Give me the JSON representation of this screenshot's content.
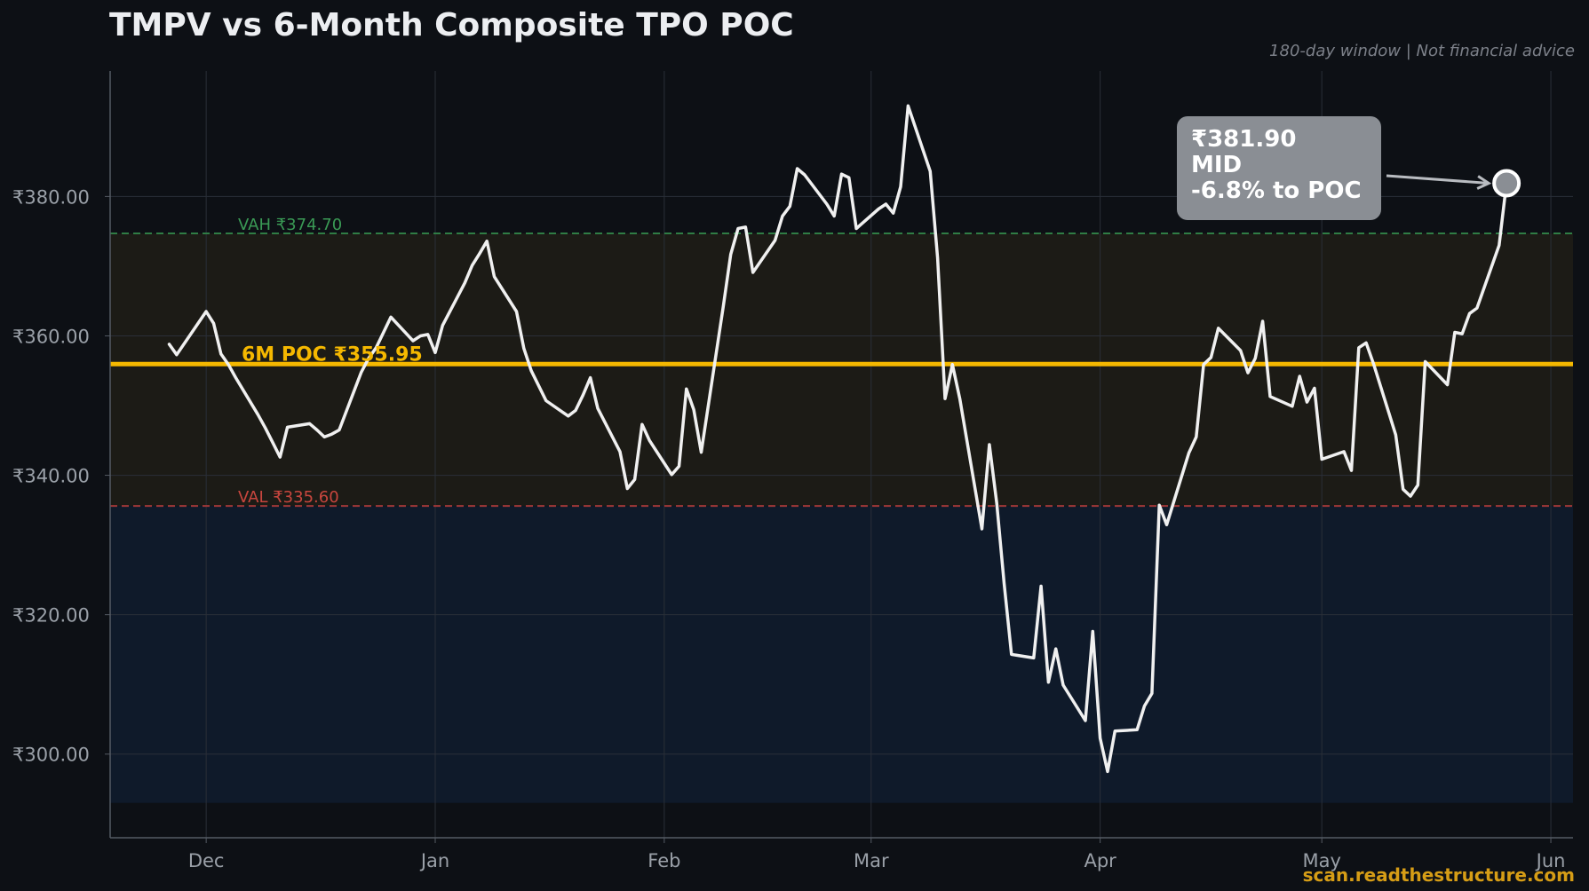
{
  "title": "TMPV vs 6-Month Composite TPO POC",
  "subtitle": "180-day window | Not financial advice",
  "watermark": "scan.readthestructure.com",
  "colors": {
    "background": "#0d1015",
    "price_line": "#f0f0f0",
    "poc": "#f5b800",
    "vah": "#2f7d45",
    "val": "#a13838",
    "value_area_fill": "#1c1b16",
    "below_val_fill": "#0f1a2a",
    "callout_bg": "#8a8e94"
  },
  "callout": {
    "price": "₹381.90",
    "zone": "MID",
    "distance": "-6.8% to POC"
  },
  "chart_data": {
    "type": "line",
    "title": "TMPV vs 6-Month Composite TPO POC",
    "x_ticks": [
      "Dec",
      "Jan",
      "Feb",
      "Mar",
      "Apr",
      "May",
      "Jun"
    ],
    "x_tick_dates": [
      "2025-12-01",
      "2026-01-01",
      "2026-02-01",
      "2026-03-01",
      "2026-04-01",
      "2026-05-01",
      "2026-06-01"
    ],
    "y_ticks": [
      "₹300.00",
      "₹320.00",
      "₹340.00",
      "₹360.00",
      "₹380.00"
    ],
    "y_tick_values": [
      300,
      320,
      340,
      360,
      380
    ],
    "ylim": [
      288,
      398
    ],
    "xlim": [
      "2025-11-18",
      "2026-06-04"
    ],
    "grid": true,
    "levels": [
      {
        "name": "POC",
        "label": "6M POC ₹355.95",
        "value": 355.95
      },
      {
        "name": "VAH",
        "label": "VAH ₹374.70",
        "value": 374.7
      },
      {
        "name": "VAL",
        "label": "VAL ₹335.60",
        "value": 335.6
      }
    ],
    "shaded_floor": 293,
    "series": [
      {
        "points": [
          [
            "2025-11-26",
            358.8
          ],
          [
            "2025-11-27",
            357.3
          ],
          [
            "2025-12-01",
            363.5
          ],
          [
            "2025-12-02",
            361.8
          ],
          [
            "2025-12-03",
            357.4
          ],
          [
            "2025-12-04",
            355.9
          ],
          [
            "2025-12-05",
            354.0
          ],
          [
            "2025-12-08",
            348.7
          ],
          [
            "2025-12-09",
            346.8
          ],
          [
            "2025-12-10",
            344.7
          ],
          [
            "2025-12-11",
            342.6
          ],
          [
            "2025-12-12",
            346.9
          ],
          [
            "2025-12-15",
            347.4
          ],
          [
            "2025-12-16",
            346.5
          ],
          [
            "2025-12-17",
            345.5
          ],
          [
            "2025-12-18",
            345.9
          ],
          [
            "2025-12-19",
            346.5
          ],
          [
            "2025-12-22",
            354.8
          ],
          [
            "2025-12-23",
            356.8
          ],
          [
            "2025-12-24",
            358.3
          ],
          [
            "2025-12-26",
            362.7
          ],
          [
            "2025-12-29",
            359.3
          ],
          [
            "2025-12-30",
            360.0
          ],
          [
            "2025-12-31",
            360.2
          ],
          [
            "2026-01-01",
            357.6
          ],
          [
            "2026-01-02",
            361.5
          ],
          [
            "2026-01-05",
            367.6
          ],
          [
            "2026-01-06",
            370.1
          ],
          [
            "2026-01-07",
            371.8
          ],
          [
            "2026-01-08",
            373.6
          ],
          [
            "2026-01-09",
            368.5
          ],
          [
            "2026-01-12",
            363.5
          ],
          [
            "2026-01-13",
            358.2
          ],
          [
            "2026-01-14",
            355.0
          ],
          [
            "2026-01-16",
            350.7
          ],
          [
            "2026-01-19",
            348.5
          ],
          [
            "2026-01-20",
            349.3
          ],
          [
            "2026-01-21",
            351.5
          ],
          [
            "2026-01-22",
            354.0
          ],
          [
            "2026-01-23",
            349.6
          ],
          [
            "2026-01-26",
            343.4
          ],
          [
            "2026-01-27",
            338.1
          ],
          [
            "2026-01-28",
            339.4
          ],
          [
            "2026-01-29",
            347.3
          ],
          [
            "2026-01-30",
            345.0
          ],
          [
            "2026-02-02",
            340.1
          ],
          [
            "2026-02-03",
            341.3
          ],
          [
            "2026-02-04",
            352.4
          ],
          [
            "2026-02-05",
            349.4
          ],
          [
            "2026-02-06",
            343.3
          ],
          [
            "2026-02-09",
            364.3
          ],
          [
            "2026-02-10",
            371.7
          ],
          [
            "2026-02-11",
            375.4
          ],
          [
            "2026-02-12",
            375.6
          ],
          [
            "2026-02-13",
            369.1
          ],
          [
            "2026-02-16",
            373.7
          ],
          [
            "2026-02-17",
            377.2
          ],
          [
            "2026-02-18",
            378.6
          ],
          [
            "2026-02-19",
            384.0
          ],
          [
            "2026-02-20",
            383.1
          ],
          [
            "2026-02-23",
            378.9
          ],
          [
            "2026-02-24",
            377.2
          ],
          [
            "2026-02-25",
            383.2
          ],
          [
            "2026-02-26",
            382.7
          ],
          [
            "2026-02-27",
            375.4
          ],
          [
            "2026-03-02",
            378.2
          ],
          [
            "2026-03-03",
            378.9
          ],
          [
            "2026-03-04",
            377.6
          ],
          [
            "2026-03-05",
            381.4
          ],
          [
            "2026-03-06",
            393.0
          ],
          [
            "2026-03-09",
            383.6
          ],
          [
            "2026-03-10",
            371.2
          ],
          [
            "2026-03-11",
            351.0
          ],
          [
            "2026-03-12",
            355.9
          ],
          [
            "2026-03-13",
            351.0
          ],
          [
            "2026-03-16",
            332.3
          ],
          [
            "2026-03-17",
            344.4
          ],
          [
            "2026-03-18",
            336.0
          ],
          [
            "2026-03-19",
            324.5
          ],
          [
            "2026-03-20",
            314.3
          ],
          [
            "2026-03-23",
            313.8
          ],
          [
            "2026-03-24",
            324.1
          ],
          [
            "2026-03-25",
            310.3
          ],
          [
            "2026-03-26",
            315.1
          ],
          [
            "2026-03-27",
            309.9
          ],
          [
            "2026-03-30",
            304.8
          ],
          [
            "2026-03-31",
            317.6
          ],
          [
            "2026-04-01",
            302.3
          ],
          [
            "2026-04-02",
            297.5
          ],
          [
            "2026-04-03",
            303.3
          ],
          [
            "2026-04-06",
            303.5
          ],
          [
            "2026-04-07",
            306.9
          ],
          [
            "2026-04-08",
            308.7
          ],
          [
            "2026-04-09",
            335.7
          ],
          [
            "2026-04-10",
            332.9
          ],
          [
            "2026-04-13",
            343.2
          ],
          [
            "2026-04-14",
            345.5
          ],
          [
            "2026-04-15",
            355.9
          ],
          [
            "2026-04-16",
            356.9
          ],
          [
            "2026-04-17",
            361.1
          ],
          [
            "2026-04-20",
            357.9
          ],
          [
            "2026-04-21",
            354.7
          ],
          [
            "2026-04-22",
            356.8
          ],
          [
            "2026-04-23",
            362.1
          ],
          [
            "2026-04-24",
            351.3
          ],
          [
            "2026-04-27",
            349.9
          ],
          [
            "2026-04-28",
            354.2
          ],
          [
            "2026-04-29",
            350.5
          ],
          [
            "2026-04-30",
            352.5
          ],
          [
            "2026-05-01",
            342.3
          ],
          [
            "2026-05-04",
            343.4
          ],
          [
            "2026-05-05",
            340.7
          ],
          [
            "2026-05-06",
            358.3
          ],
          [
            "2026-05-07",
            359.0
          ],
          [
            "2026-05-08",
            356.0
          ],
          [
            "2026-05-11",
            345.8
          ],
          [
            "2026-05-12",
            338.0
          ],
          [
            "2026-05-13",
            337.0
          ],
          [
            "2026-05-14",
            338.6
          ],
          [
            "2026-05-15",
            356.3
          ],
          [
            "2026-05-18",
            353.0
          ],
          [
            "2026-05-19",
            360.5
          ],
          [
            "2026-05-20",
            360.3
          ],
          [
            "2026-05-21",
            363.2
          ],
          [
            "2026-05-22",
            364.0
          ],
          [
            "2026-05-25",
            373.0
          ],
          [
            "2026-05-26",
            381.9
          ]
        ]
      }
    ],
    "last_point": {
      "date": "2026-05-26",
      "value": 381.9
    }
  }
}
